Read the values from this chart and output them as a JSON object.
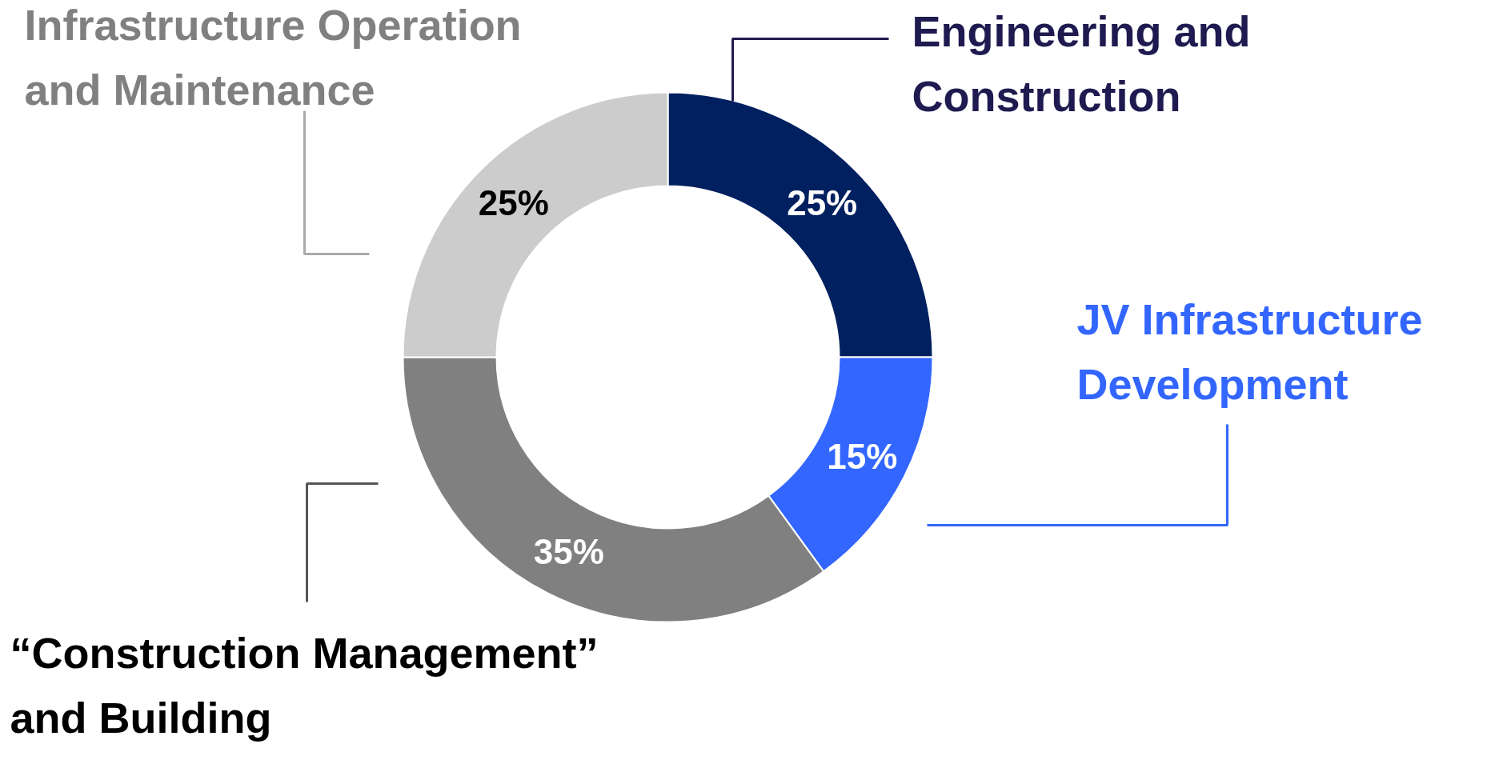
{
  "chart_data": {
    "type": "donut",
    "categories": [
      "Engineering and Construction",
      "JV Infrastructure Development",
      "“Construction Management” and Building",
      "Infrastructure Operation and Maintenance"
    ],
    "values": [
      25,
      15,
      35,
      25
    ],
    "colors": [
      "#002060",
      "#3366ff",
      "#808080",
      "#cccccc"
    ],
    "value_labels": [
      "25%",
      "15%",
      "35%",
      "25%"
    ]
  }
}
